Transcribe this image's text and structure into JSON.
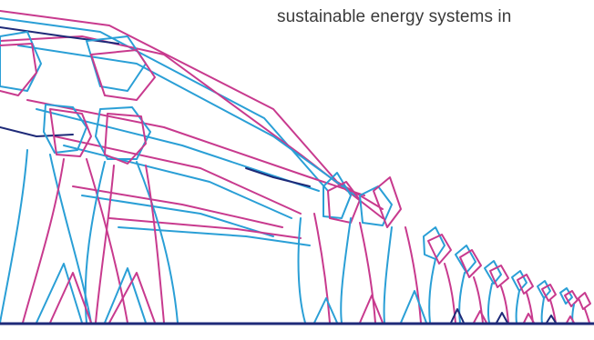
{
  "headline": "sustainable energy systems in",
  "colors": {
    "background": "#ffffff",
    "blue": "#2a9fd6",
    "magenta": "#c83a8e",
    "navy": "#1e2a78",
    "text": "#3a3a3a"
  },
  "artwork": {
    "icon": "wind-turbine-line-art"
  }
}
